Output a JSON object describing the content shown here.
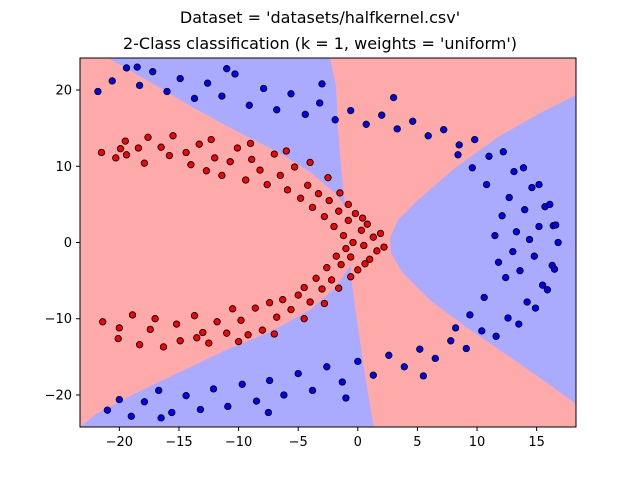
{
  "chart_data": {
    "type": "scatter",
    "title": "Dataset = 'datasets/halfkernel.csv'",
    "subtitle": "2-Class classification (k = 1, weights = 'uniform')",
    "xlabel": "",
    "ylabel": "",
    "xlim": [
      -23.3,
      18.3
    ],
    "ylim": [
      -24.2,
      24.2
    ],
    "xticks": [
      -20,
      -15,
      -10,
      -5,
      0,
      5,
      10,
      15
    ],
    "yticks": [
      -20,
      -10,
      0,
      10,
      20
    ],
    "xtick_labels": [
      "−20",
      "−15",
      "−10",
      "−5",
      "0",
      "5",
      "10",
      "15"
    ],
    "ytick_labels": [
      "−20",
      "−10",
      "0",
      "10",
      "20"
    ],
    "grid": false,
    "legend": "none",
    "colors": {
      "region_red": "#ffaaaa",
      "region_blue": "#aaaaff",
      "point_red": "#ff0000",
      "point_blue": "#0000ff",
      "point_edge": "#000000"
    },
    "series": [
      {
        "class": "red",
        "points": [
          [
            -21.5,
            11.8
          ],
          [
            -21.4,
            -10.4
          ],
          [
            -20.3,
            11.1
          ],
          [
            -20.1,
            -12.6
          ],
          [
            -20.0,
            -11.2
          ],
          [
            -19.9,
            12.3
          ],
          [
            -19.5,
            13.3
          ],
          [
            -19.4,
            11.5
          ],
          [
            -18.9,
            -9.5
          ],
          [
            -18.4,
            12.4
          ],
          [
            -18.3,
            -13.4
          ],
          [
            -17.9,
            10.4
          ],
          [
            -17.6,
            13.8
          ],
          [
            -17.4,
            -11.4
          ],
          [
            -17.0,
            -10.0
          ],
          [
            -16.5,
            12.5
          ],
          [
            -16.3,
            -13.7
          ],
          [
            -15.8,
            11.4
          ],
          [
            -15.5,
            14.0
          ],
          [
            -15.2,
            -10.7
          ],
          [
            -14.9,
            -12.9
          ],
          [
            -14.4,
            11.8
          ],
          [
            -14.0,
            10.2
          ],
          [
            -13.7,
            -9.6
          ],
          [
            -13.3,
            12.9
          ],
          [
            -13.0,
            -11.8
          ],
          [
            -12.7,
            9.4
          ],
          [
            -12.5,
            -13.2
          ],
          [
            -12.0,
            11.1
          ],
          [
            -11.8,
            -10.4
          ],
          [
            -11.4,
            8.8
          ],
          [
            -11.0,
            -11.9
          ],
          [
            -10.7,
            10.6
          ],
          [
            -10.5,
            -8.7
          ],
          [
            -10.1,
            12.4
          ],
          [
            -9.8,
            -10.2
          ],
          [
            -9.4,
            8.2
          ],
          [
            -9.2,
            -12.1
          ],
          [
            -8.9,
            10.9
          ],
          [
            -8.6,
            -8.6
          ],
          [
            -8.2,
            9.5
          ],
          [
            -8.0,
            -11.5
          ],
          [
            -7.6,
            7.6
          ],
          [
            -7.4,
            -7.9
          ],
          [
            -7.0,
            11.6
          ],
          [
            -6.8,
            -9.8
          ],
          [
            -6.5,
            8.8
          ],
          [
            -6.3,
            -7.5
          ],
          [
            -5.9,
            6.9
          ],
          [
            -5.6,
            -8.8
          ],
          [
            -5.3,
            9.9
          ],
          [
            -5.0,
            -6.9
          ],
          [
            -4.8,
            5.8
          ],
          [
            -4.5,
            -5.9
          ],
          [
            -4.2,
            7.5
          ],
          [
            -4.0,
            -7.8
          ],
          [
            -3.8,
            4.6
          ],
          [
            -3.5,
            -4.7
          ],
          [
            -3.3,
            6.4
          ],
          [
            -3.0,
            -6.1
          ],
          [
            -2.8,
            3.4
          ],
          [
            -2.6,
            -3.3
          ],
          [
            -2.4,
            5.5
          ],
          [
            -2.2,
            -4.9
          ],
          [
            -2.0,
            2.1
          ],
          [
            -1.8,
            -1.8
          ],
          [
            -1.6,
            4.1
          ],
          [
            -1.4,
            -2.9
          ],
          [
            -1.2,
            0.9
          ],
          [
            -1.0,
            -0.8
          ],
          [
            -0.8,
            2.9
          ],
          [
            -0.6,
            -1.9
          ],
          [
            -0.4,
            0.0
          ],
          [
            -0.2,
            3.8
          ],
          [
            0.0,
            -3.6
          ],
          [
            0.3,
            1.6
          ],
          [
            0.5,
            -0.4
          ],
          [
            0.8,
            2.4
          ],
          [
            1.0,
            -2.2
          ],
          [
            1.3,
            0.7
          ],
          [
            1.6,
            -1.1
          ],
          [
            1.9,
            1.2
          ],
          [
            2.2,
            -0.6
          ],
          [
            -12.3,
            13.5
          ],
          [
            -9.0,
            13.0
          ],
          [
            -6.0,
            12.0
          ],
          [
            -4.0,
            10.5
          ],
          [
            -2.5,
            8.5
          ],
          [
            -1.5,
            6.5
          ],
          [
            -0.8,
            5.0
          ],
          [
            0.4,
            3.2
          ],
          [
            -13.5,
            -12.5
          ],
          [
            -10.0,
            -13.0
          ],
          [
            -7.0,
            -12.0
          ],
          [
            -4.5,
            -10.0
          ],
          [
            -2.8,
            -8.0
          ],
          [
            -1.6,
            -6.0
          ],
          [
            -0.6,
            -4.5
          ],
          [
            0.6,
            -2.8
          ]
        ]
      },
      {
        "class": "blue",
        "points": [
          [
            -21.8,
            19.8
          ],
          [
            -21.0,
            -22.0
          ],
          [
            -20.6,
            21.2
          ],
          [
            -20.0,
            -20.6
          ],
          [
            -19.4,
            22.9
          ],
          [
            -19.0,
            -22.8
          ],
          [
            -18.3,
            20.6
          ],
          [
            -17.9,
            -20.9
          ],
          [
            -17.2,
            22.4
          ],
          [
            -16.7,
            -19.4
          ],
          [
            -16.0,
            19.8
          ],
          [
            -15.6,
            -22.3
          ],
          [
            -14.9,
            21.5
          ],
          [
            -14.4,
            -20.1
          ],
          [
            -13.7,
            18.9
          ],
          [
            -13.2,
            -21.9
          ],
          [
            -12.6,
            20.9
          ],
          [
            -12.1,
            -19.2
          ],
          [
            -11.4,
            19.2
          ],
          [
            -10.9,
            -21.5
          ],
          [
            -10.3,
            22.1
          ],
          [
            -9.7,
            -18.6
          ],
          [
            -9.1,
            18.0
          ],
          [
            -8.5,
            -20.8
          ],
          [
            -7.9,
            20.2
          ],
          [
            -7.4,
            -18.1
          ],
          [
            -6.8,
            17.4
          ],
          [
            -6.2,
            -20.0
          ],
          [
            -5.6,
            19.5
          ],
          [
            -5.0,
            -17.2
          ],
          [
            -4.4,
            16.8
          ],
          [
            -3.8,
            -19.4
          ],
          [
            -3.2,
            18.3
          ],
          [
            -2.6,
            -16.3
          ],
          [
            -1.9,
            16.1
          ],
          [
            -1.3,
            -18.3
          ],
          [
            -0.6,
            17.3
          ],
          [
            0.0,
            -15.6
          ],
          [
            0.7,
            15.5
          ],
          [
            1.3,
            -17.4
          ],
          [
            2.0,
            16.7
          ],
          [
            2.6,
            -14.8
          ],
          [
            3.3,
            14.9
          ],
          [
            3.9,
            -16.3
          ],
          [
            4.6,
            15.9
          ],
          [
            5.2,
            -14.0
          ],
          [
            5.9,
            14.0
          ],
          [
            6.5,
            -15.2
          ],
          [
            7.2,
            14.8
          ],
          [
            7.8,
            -12.9
          ],
          [
            8.5,
            12.8
          ],
          [
            9.1,
            -13.9
          ],
          [
            9.8,
            13.5
          ],
          [
            10.4,
            -11.6
          ],
          [
            11.0,
            11.3
          ],
          [
            11.6,
            -12.3
          ],
          [
            12.2,
            11.9
          ],
          [
            12.6,
            -9.9
          ],
          [
            13.1,
            9.3
          ],
          [
            13.5,
            -10.7
          ],
          [
            13.9,
            9.8
          ],
          [
            14.2,
            -7.8
          ],
          [
            14.6,
            7.2
          ],
          [
            14.9,
            -8.6
          ],
          [
            15.2,
            7.6
          ],
          [
            15.5,
            -5.6
          ],
          [
            15.7,
            4.7
          ],
          [
            15.9,
            -6.2
          ],
          [
            16.1,
            5.0
          ],
          [
            16.3,
            -3.0
          ],
          [
            16.4,
            2.2
          ],
          [
            16.5,
            -3.5
          ],
          [
            16.6,
            2.3
          ],
          [
            16.8,
            0.0
          ],
          [
            11.5,
            0.9
          ],
          [
            11.8,
            -2.6
          ],
          [
            12.1,
            3.5
          ],
          [
            12.4,
            -4.6
          ],
          [
            12.7,
            5.9
          ],
          [
            13.0,
            -1.2
          ],
          [
            13.3,
            1.4
          ],
          [
            13.6,
            -3.7
          ],
          [
            14.0,
            4.3
          ],
          [
            14.4,
            0.4
          ],
          [
            14.8,
            -1.8
          ],
          [
            15.2,
            2.1
          ],
          [
            10.8,
            7.6
          ],
          [
            10.6,
            -7.2
          ],
          [
            9.6,
            9.8
          ],
          [
            9.4,
            -9.5
          ],
          [
            8.4,
            11.5
          ],
          [
            8.2,
            -11.2
          ],
          [
            -18.5,
            23.0
          ],
          [
            -16.5,
            -23.0
          ],
          [
            -11.0,
            22.8
          ],
          [
            -7.5,
            -22.3
          ],
          [
            -3.0,
            20.8
          ],
          [
            -1.0,
            -20.4
          ],
          [
            3.0,
            19.0
          ],
          [
            5.5,
            -17.5
          ]
        ]
      }
    ]
  }
}
